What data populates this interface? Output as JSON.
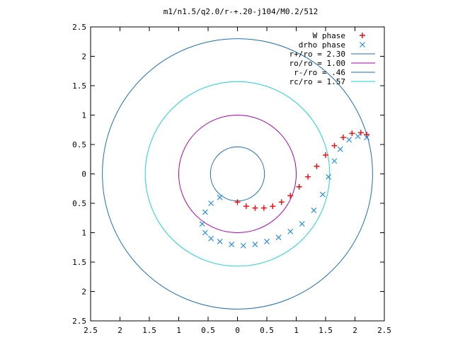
{
  "chart_data": {
    "type": "scatter",
    "title": "m1/n1.5/q2.0/r-+.20-j104/M0.2/512",
    "xlabel": "",
    "ylabel": "",
    "xlim": [
      -2.5,
      2.5
    ],
    "ylim": [
      -2.5,
      2.5
    ],
    "x_tick_values": [
      -2.5,
      -2,
      -1.5,
      -1,
      -0.5,
      0,
      0.5,
      1,
      1.5,
      2,
      2.5
    ],
    "x_tick_labels": [
      "2.5",
      "2",
      "1.5",
      "1",
      "0.5",
      "0",
      "0.5",
      "1",
      "1.5",
      "2",
      "2.5"
    ],
    "y_tick_values": [
      2.5,
      2,
      1.5,
      1,
      0.5,
      0,
      -0.5,
      -1,
      -1.5,
      -2,
      -2.5
    ],
    "y_tick_labels": [
      "2.5",
      "2",
      "1.5",
      "1",
      "0.5",
      "0",
      "0.5",
      "1",
      "1.5",
      "2",
      "2.5"
    ],
    "grid": false,
    "legend_position": "top-right",
    "circles": [
      {
        "name": "r+/ro = 2.30",
        "radius": 2.3,
        "color": "#1e6fb4"
      },
      {
        "name": "ro/ro = 1.00",
        "radius": 1.0,
        "color": "#aa00aa"
      },
      {
        "name": "r-/ro = .46",
        "radius": 0.46,
        "color": "#1e6fb4"
      },
      {
        "name": "rc/ro = 1.57",
        "radius": 1.57,
        "color": "#1ed2d2"
      }
    ],
    "series": [
      {
        "name": "W phase",
        "marker": "+",
        "color": "#ff0000",
        "points": [
          [
            0.0,
            -0.48
          ],
          [
            0.15,
            -0.55
          ],
          [
            0.3,
            -0.58
          ],
          [
            0.45,
            -0.58
          ],
          [
            0.6,
            -0.55
          ],
          [
            0.75,
            -0.48
          ],
          [
            0.9,
            -0.37
          ],
          [
            1.05,
            -0.22
          ],
          [
            1.2,
            -0.05
          ],
          [
            1.35,
            0.13
          ],
          [
            1.5,
            0.32
          ],
          [
            1.65,
            0.48
          ],
          [
            1.8,
            0.62
          ],
          [
            1.95,
            0.69
          ],
          [
            2.1,
            0.7
          ],
          [
            2.2,
            0.67
          ]
        ]
      },
      {
        "name": "drho phase",
        "marker": "x",
        "color": "#2a8fe0",
        "points": [
          [
            -0.3,
            -0.4
          ],
          [
            -0.45,
            -0.5
          ],
          [
            -0.55,
            -0.65
          ],
          [
            -0.6,
            -0.85
          ],
          [
            -0.55,
            -1.0
          ],
          [
            -0.45,
            -1.1
          ],
          [
            -0.3,
            -1.15
          ],
          [
            -0.1,
            -1.2
          ],
          [
            0.1,
            -1.22
          ],
          [
            0.3,
            -1.2
          ],
          [
            0.5,
            -1.15
          ],
          [
            0.7,
            -1.08
          ],
          [
            0.9,
            -0.98
          ],
          [
            1.1,
            -0.85
          ],
          [
            1.3,
            -0.62
          ],
          [
            1.45,
            -0.35
          ],
          [
            1.55,
            -0.05
          ],
          [
            1.65,
            0.22
          ],
          [
            1.75,
            0.42
          ],
          [
            1.9,
            0.58
          ],
          [
            2.05,
            0.64
          ],
          [
            2.2,
            0.62
          ]
        ]
      }
    ]
  }
}
